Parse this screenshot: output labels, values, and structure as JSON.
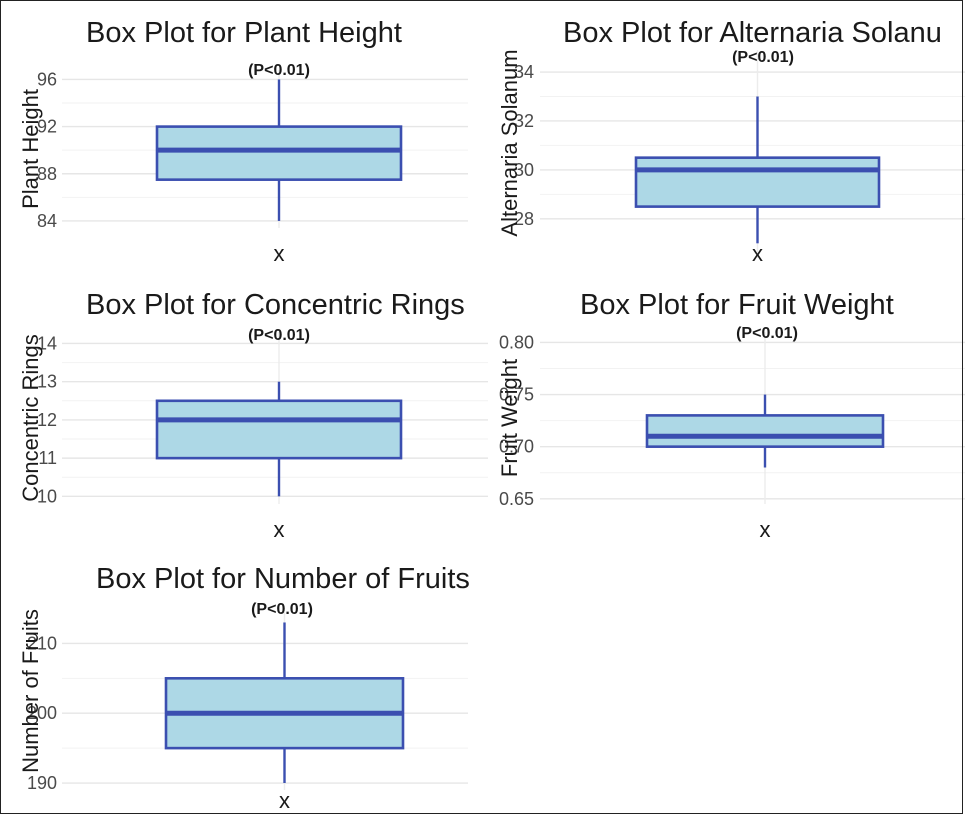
{
  "chart_data": [
    {
      "type": "box",
      "title": "Box Plot for Plant Height",
      "annotation": "(P<0.01)",
      "ylabel": "Plant Height",
      "categories": [
        "x"
      ],
      "yticks": [
        84,
        88,
        92,
        96
      ],
      "ylim": [
        83.4,
        96.8
      ],
      "box": {
        "min": 84,
        "q1": 87.5,
        "median": 90,
        "q3": 92,
        "max": 96
      },
      "grid": true,
      "colors": {
        "fill": "#add8e6",
        "stroke": "#3b4fb0"
      }
    },
    {
      "type": "box",
      "title": "Box Plot for Alternaria Solanu",
      "annotation": "(P<0.01)",
      "ylabel": "Alternaria Solanum",
      "categories": [
        "x"
      ],
      "yticks": [
        28,
        30,
        32,
        34
      ],
      "ylim": [
        26.4,
        34.9
      ],
      "box": {
        "min": 27,
        "q1": 28.5,
        "median": 30,
        "q3": 30.5,
        "max": 33
      },
      "grid": true,
      "colors": {
        "fill": "#add8e6",
        "stroke": "#3b4fb0"
      }
    },
    {
      "type": "box",
      "title": "Box Plot for Concentric Rings",
      "annotation": "(P<0.01)",
      "ylabel": "Concentric Rings",
      "categories": [
        "x"
      ],
      "yticks": [
        10,
        11,
        12,
        13,
        14
      ],
      "ylim": [
        9.8,
        14.3
      ],
      "box": {
        "min": 10,
        "q1": 11,
        "median": 12,
        "q3": 12.5,
        "max": 13
      },
      "grid": true,
      "colors": {
        "fill": "#add8e6",
        "stroke": "#3b4fb0"
      }
    },
    {
      "type": "box",
      "title": "Box Plot for Fruit Weight",
      "annotation": "(P<0.01)",
      "ylabel": "Fruit Weight",
      "categories": [
        "x"
      ],
      "yticks": [
        0.65,
        0.7,
        0.75,
        0.8
      ],
      "ytick_labels": [
        "0.65",
        "0.70",
        "0.75",
        "0.80"
      ],
      "ylim": [
        0.645,
        0.81
      ],
      "box": {
        "min": 0.68,
        "q1": 0.7,
        "median": 0.71,
        "q3": 0.73,
        "max": 0.75
      },
      "grid": true,
      "colors": {
        "fill": "#add8e6",
        "stroke": "#3b4fb0"
      }
    },
    {
      "type": "box",
      "title": "Box Plot for Number of Fruits",
      "annotation": "(P<0.01)",
      "ylabel": "Number of Fruits",
      "categories": [
        "x"
      ],
      "yticks": [
        190,
        200,
        210
      ],
      "ylim": [
        189,
        214.5
      ],
      "box": {
        "min": 190,
        "q1": 195,
        "median": 200,
        "q3": 205,
        "max": 213
      },
      "grid": true,
      "colors": {
        "fill": "#add8e6",
        "stroke": "#3b4fb0"
      }
    }
  ]
}
